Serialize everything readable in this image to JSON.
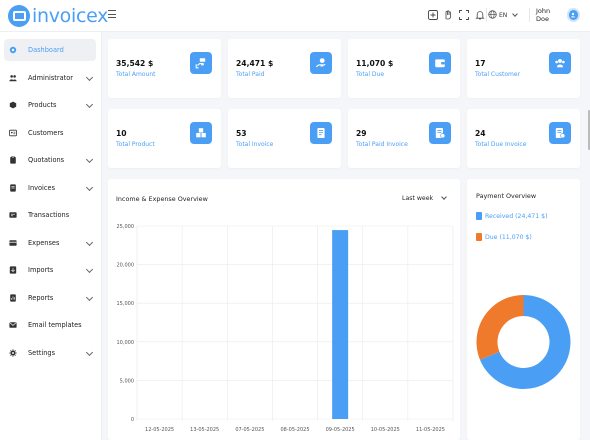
{
  "app": {
    "name": "invoicex"
  },
  "colors": {
    "accent": "#4a9ff5",
    "due": "#f07a2c"
  },
  "header": {
    "icons": [
      "add-square-icon",
      "hand-icon",
      "fullscreen-icon",
      "bell-icon",
      "globe-icon"
    ],
    "language": "EN",
    "user_name": "John Doe"
  },
  "sidebar": {
    "items": [
      {
        "label": "Dashboard",
        "icon": "dashboard-icon",
        "active": true,
        "has_children": false
      },
      {
        "label": "Administrator",
        "icon": "users-icon",
        "has_children": true
      },
      {
        "label": "Products",
        "icon": "box-icon",
        "has_children": true
      },
      {
        "label": "Customers",
        "icon": "id-card-icon",
        "has_children": false
      },
      {
        "label": "Quotations",
        "icon": "clipboard-icon",
        "has_children": true
      },
      {
        "label": "Invoices",
        "icon": "invoice-icon",
        "has_children": true
      },
      {
        "label": "Transactions",
        "icon": "transactions-icon",
        "has_children": false
      },
      {
        "label": "Expenses",
        "icon": "expenses-icon",
        "has_children": true
      },
      {
        "label": "Imports",
        "icon": "import-icon",
        "has_children": true
      },
      {
        "label": "Reports",
        "icon": "report-icon",
        "has_children": true
      },
      {
        "label": "Email templates",
        "icon": "email-icon",
        "has_children": false
      },
      {
        "label": "Settings",
        "icon": "gear-icon",
        "has_children": true
      }
    ]
  },
  "stats": [
    {
      "value": "35,542 $",
      "label": "Total Amount",
      "icon": "money-hand-icon"
    },
    {
      "value": "24,471 $",
      "label": "Total Paid",
      "icon": "coin-hand-icon"
    },
    {
      "value": "11,070 $",
      "label": "Total Due",
      "icon": "wallet-icon"
    },
    {
      "value": "17",
      "label": "Total Customer",
      "icon": "customers-icon"
    },
    {
      "value": "10",
      "label": "Total Product",
      "icon": "boxes-icon"
    },
    {
      "value": "53",
      "label": "Total Invoice",
      "icon": "invoice-doc-icon"
    },
    {
      "value": "29",
      "label": "Total Paid Invoice",
      "icon": "paid-invoice-icon"
    },
    {
      "value": "24",
      "label": "Total Due Invoice",
      "icon": "due-invoice-icon"
    }
  ],
  "income_expense": {
    "title": "Income & Expense Overview",
    "period": "Last week"
  },
  "chart_data": {
    "type": "bar",
    "categories": [
      "12-05-2025",
      "13-05-2025",
      "07-05-2025",
      "08-05-2025",
      "09-05-2025",
      "10-05-2025",
      "11-05-2025"
    ],
    "values": [
      0,
      0,
      0,
      0,
      24471,
      0,
      0
    ],
    "ylim": [
      0,
      25000
    ],
    "yticks": [
      "0",
      "5,000",
      "10,000",
      "15,000",
      "20,000",
      "25,000"
    ],
    "grid": true,
    "color": "#4a9ff5"
  },
  "payment_overview": {
    "title": "Payment Overview",
    "legend": [
      {
        "label": "Received (24,471 $)",
        "value": 24471,
        "color": "#4a9ff5"
      },
      {
        "label": "Due (11,070 $)",
        "value": 11070,
        "color": "#f07a2c"
      }
    ]
  }
}
